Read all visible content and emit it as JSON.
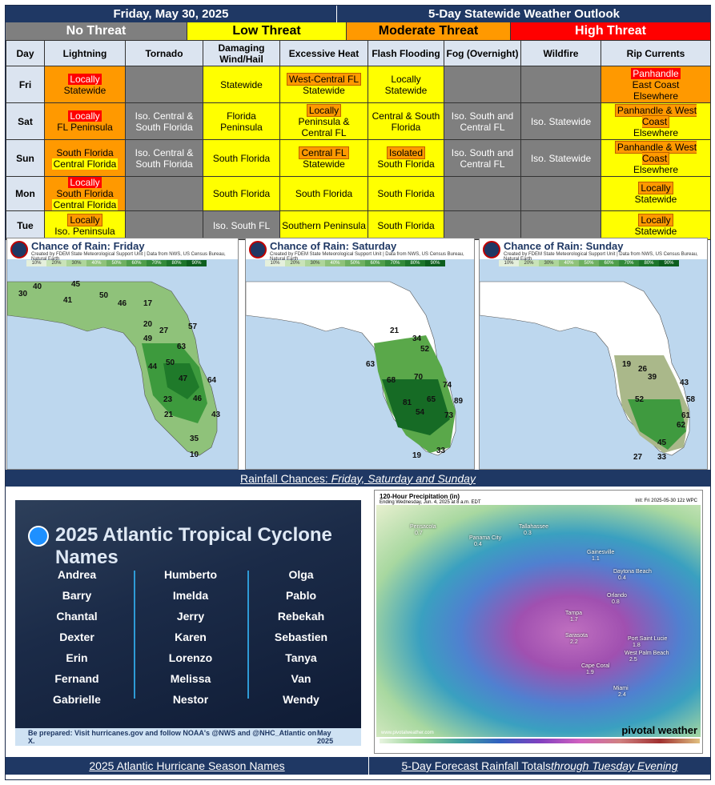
{
  "header": {
    "date": "Friday, May 30, 2025",
    "title": "5-Day Statewide Weather Outlook"
  },
  "legend": {
    "none": "No Threat",
    "low": "Low Threat",
    "moderate": "Moderate Threat",
    "high": "High Threat",
    "colors": {
      "none": "#7f7f7f",
      "low": "#ffff00",
      "moderate": "#ff9900",
      "high": "#ff0000"
    }
  },
  "table": {
    "headers": [
      "Day",
      "Lightning",
      "Tornado",
      "Damaging Wind/Hail",
      "Excessive Heat",
      "Flash Flooding",
      "Fog (Overnight)",
      "Wildfire",
      "Rip Currents"
    ],
    "rows": {
      "fri": {
        "day": "Fri",
        "lightning_a": "Locally",
        "lightning_b": "Statewide",
        "wind": "Statewide",
        "heat_a": "West-Central FL",
        "heat_b": "Statewide",
        "flood_a": "Locally",
        "flood_b": "Statewide",
        "rip_a": "Panhandle",
        "rip_b": "East Coast",
        "rip_c": "Elsewhere"
      },
      "sat": {
        "day": "Sat",
        "lightning_a": "Locally",
        "lightning_b": "FL Peninsula",
        "tornado": "Iso. Central & South Florida",
        "wind": "Florida Peninsula",
        "heat_a": "Locally",
        "heat_b": "Peninsula & Central FL",
        "flood": "Central & South Florida",
        "fog": "Iso. South and Central FL",
        "wildfire": "Iso. Statewide",
        "rip_a": "Panhandle & West Coast",
        "rip_b": "Elsewhere"
      },
      "sun": {
        "day": "Sun",
        "lightning_a": "South Florida",
        "lightning_b": "Central Florida",
        "tornado": "Iso. Central & South Florida",
        "wind": "South Florida",
        "heat_a": "Central FL",
        "heat_b": "Statewide",
        "flood_a": "Isolated",
        "flood_b": "South Florida",
        "fog": "Iso. South and Central FL",
        "wildfire": "Iso.  Statewide",
        "rip_a": "Panhandle & West Coast",
        "rip_b": "Elsewhere"
      },
      "mon": {
        "day": "Mon",
        "lightning_a": "Locally",
        "lightning_b": "South Florida",
        "lightning_c": "Central Florida",
        "wind": "South Florida",
        "heat": "South Florida",
        "flood": "South Florida",
        "rip_a": "Locally",
        "rip_b": "Statewide"
      },
      "tue": {
        "day": "Tue",
        "lightning_a": "Locally",
        "lightning_b": "Iso. Peninsula",
        "wind": "Iso. South FL",
        "heat": "Southern Peninsula",
        "flood": "South Florida",
        "rip_a": "Locally",
        "rip_b": "Statewide"
      }
    }
  },
  "rain_maps": {
    "scale": [
      "10%",
      "20%",
      "30%",
      "40%",
      "50%",
      "60%",
      "70%",
      "80%",
      "90%"
    ],
    "credit": "Created by FDEM State Meteorological Support Unit | Data from NWS, US Census Bureau, Natural Earth",
    "friday": {
      "title": "Chance of Rain: Friday",
      "values": [
        "40",
        "45",
        "50",
        "30",
        "41",
        "46",
        "17",
        "20",
        "27",
        "57",
        "63",
        "49",
        "44",
        "50",
        "47",
        "64",
        "23",
        "46",
        "21",
        "43",
        "35",
        "10"
      ]
    },
    "saturday": {
      "title": "Chance of Rain: Saturday",
      "values": [
        "21",
        "34",
        "52",
        "63",
        "70",
        "68",
        "74",
        "81",
        "65",
        "89",
        "73",
        "54",
        "33",
        "19"
      ]
    },
    "sunday": {
      "title": "Chance of Rain: Sunday",
      "values": [
        "19",
        "26",
        "39",
        "43",
        "52",
        "58",
        "61",
        "62",
        "45",
        "27",
        "33"
      ]
    },
    "caption_prefix": "Rainfall Chances: ",
    "caption_italic": "Friday, Saturday and Sunday"
  },
  "names": {
    "title": "2025 Atlantic Tropical Cyclone Names",
    "col1": [
      "Andrea",
      "Barry",
      "Chantal",
      "Dexter",
      "Erin",
      "Fernand",
      "Gabrielle"
    ],
    "col2": [
      "Humberto",
      "Imelda",
      "Jerry",
      "Karen",
      "Lorenzo",
      "Melissa",
      "Nestor"
    ],
    "col3": [
      "Olga",
      "Pablo",
      "Rebekah",
      "Sebastien",
      "Tanya",
      "Van",
      "Wendy"
    ],
    "footer": "Be prepared: Visit hurricanes.gov and follow NOAA's @NWS and @NHC_Atlantic on X.",
    "footer_date": "May 2025",
    "caption": "2025 Atlantic Hurricane Season Names"
  },
  "precip": {
    "title": "120-Hour Precipitation (in)",
    "subtitle": "Ending Wednesday, Jun. 4, 2025 at 8 a.m. EDT",
    "init": "Init: Fri 2025-05-30 12z WPC",
    "brand": "pivotal weather",
    "site": "www.pivotalweather.com",
    "cities": [
      {
        "name": "Pensacola",
        "val": "0.7"
      },
      {
        "name": "Panama City",
        "val": "0.4"
      },
      {
        "name": "Tallahassee",
        "val": "0.3"
      },
      {
        "name": "Gainesville",
        "val": "1.1"
      },
      {
        "name": "Daytona Beach",
        "val": "0.4"
      },
      {
        "name": "Orlando",
        "val": "0.8"
      },
      {
        "name": "Tampa",
        "val": "1.7"
      },
      {
        "name": "Sarasota",
        "val": "2.2"
      },
      {
        "name": "Port Saint Lucie",
        "val": "1.8"
      },
      {
        "name": "West Palm Beach",
        "val": "2.5"
      },
      {
        "name": "Cape Coral",
        "val": "1.9"
      },
      {
        "name": "Miami",
        "val": "2.4"
      }
    ],
    "caption_prefix": "5-Day Forecast Rainfall Totals ",
    "caption_italic": "through Tuesday  Evening"
  }
}
